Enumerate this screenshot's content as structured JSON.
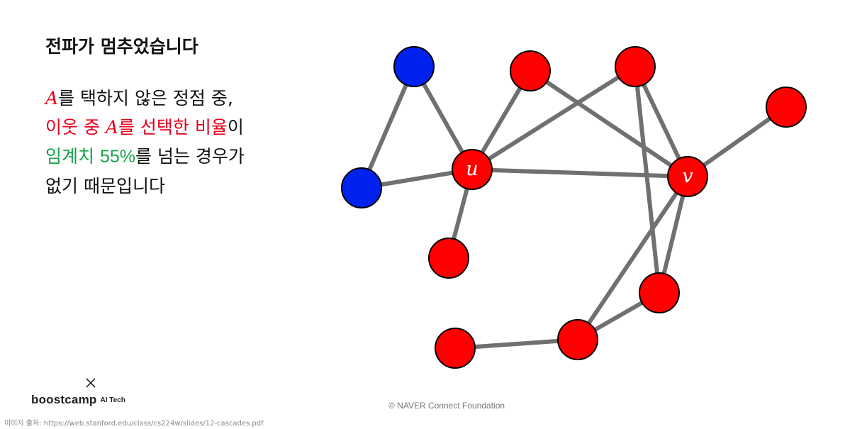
{
  "title": "전파가 멈추었습니다",
  "explanation": {
    "line1": {
      "var": "A",
      "text": "를 택하지 않은 정점 중,"
    },
    "line2": {
      "red_before": "이웃 중 ",
      "var": "A",
      "red_after": "를 선택한 비율",
      "black": "이"
    },
    "line3": {
      "green_word": "임계치 ",
      "green_pct": "55%",
      "black": "를 넘는 경우가"
    },
    "line4": {
      "text": "없기 때문입니다"
    }
  },
  "colors": {
    "node_red": "#ff0000",
    "node_blue": "#0022ee",
    "edge": "#707070",
    "highlight_red": "#e8001c",
    "highlight_green": "#16a34a"
  },
  "graph": {
    "nodes": [
      {
        "id": "b1",
        "color": "blue",
        "label": ""
      },
      {
        "id": "b2",
        "color": "blue",
        "label": ""
      },
      {
        "id": "u",
        "color": "red",
        "label": "u"
      },
      {
        "id": "r_top1",
        "color": "red",
        "label": ""
      },
      {
        "id": "r_top2",
        "color": "red",
        "label": ""
      },
      {
        "id": "r_right",
        "color": "red",
        "label": ""
      },
      {
        "id": "v",
        "color": "red",
        "label": "v"
      },
      {
        "id": "r_mid",
        "color": "red",
        "label": ""
      },
      {
        "id": "r_low",
        "color": "red",
        "label": ""
      },
      {
        "id": "r_bot",
        "color": "red",
        "label": ""
      },
      {
        "id": "r_left",
        "color": "red",
        "label": ""
      }
    ],
    "edges": [
      [
        "b1",
        "b2"
      ],
      [
        "b1",
        "u"
      ],
      [
        "b2",
        "u"
      ],
      [
        "u",
        "r_top1"
      ],
      [
        "u",
        "r_top2"
      ],
      [
        "u",
        "v"
      ],
      [
        "u",
        "r_mid"
      ],
      [
        "r_top1",
        "v"
      ],
      [
        "r_top2",
        "v"
      ],
      [
        "r_top2",
        "r_low"
      ],
      [
        "r_right",
        "v"
      ],
      [
        "v",
        "r_low"
      ],
      [
        "v",
        "r_bot"
      ],
      [
        "r_low",
        "r_bot"
      ],
      [
        "r_bot",
        "r_left"
      ]
    ]
  },
  "footer": {
    "logo_main": "boostcamp",
    "logo_sub": "AI Tech",
    "copyright": "©  NAVER Connect Foundation",
    "source": "이미지 출처: https://web.stanford.edu/class/cs224w/slides/12-cascades.pdf"
  }
}
